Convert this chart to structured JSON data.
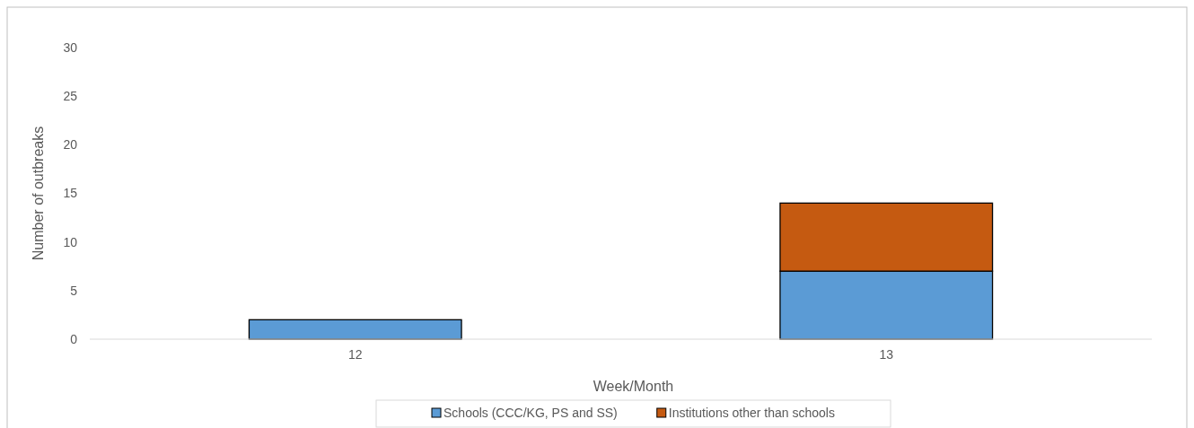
{
  "chart_data": {
    "type": "bar",
    "xlabel": "Week/Month",
    "ylabel": "Number of outbreaks",
    "categories": [
      "12",
      "13"
    ],
    "stacked": true,
    "series": [
      {
        "name": "Schools (CCC/KG, PS and SS)",
        "color": "#5b9bd5",
        "values": [
          2,
          7
        ]
      },
      {
        "name": "Institutions other than schools",
        "color": "#c55a11",
        "values": [
          0,
          7
        ]
      }
    ],
    "ylim": [
      0,
      30
    ],
    "yticks": [
      0,
      5,
      10,
      15,
      20,
      25,
      30
    ],
    "grid": false,
    "legend": "bottom"
  }
}
